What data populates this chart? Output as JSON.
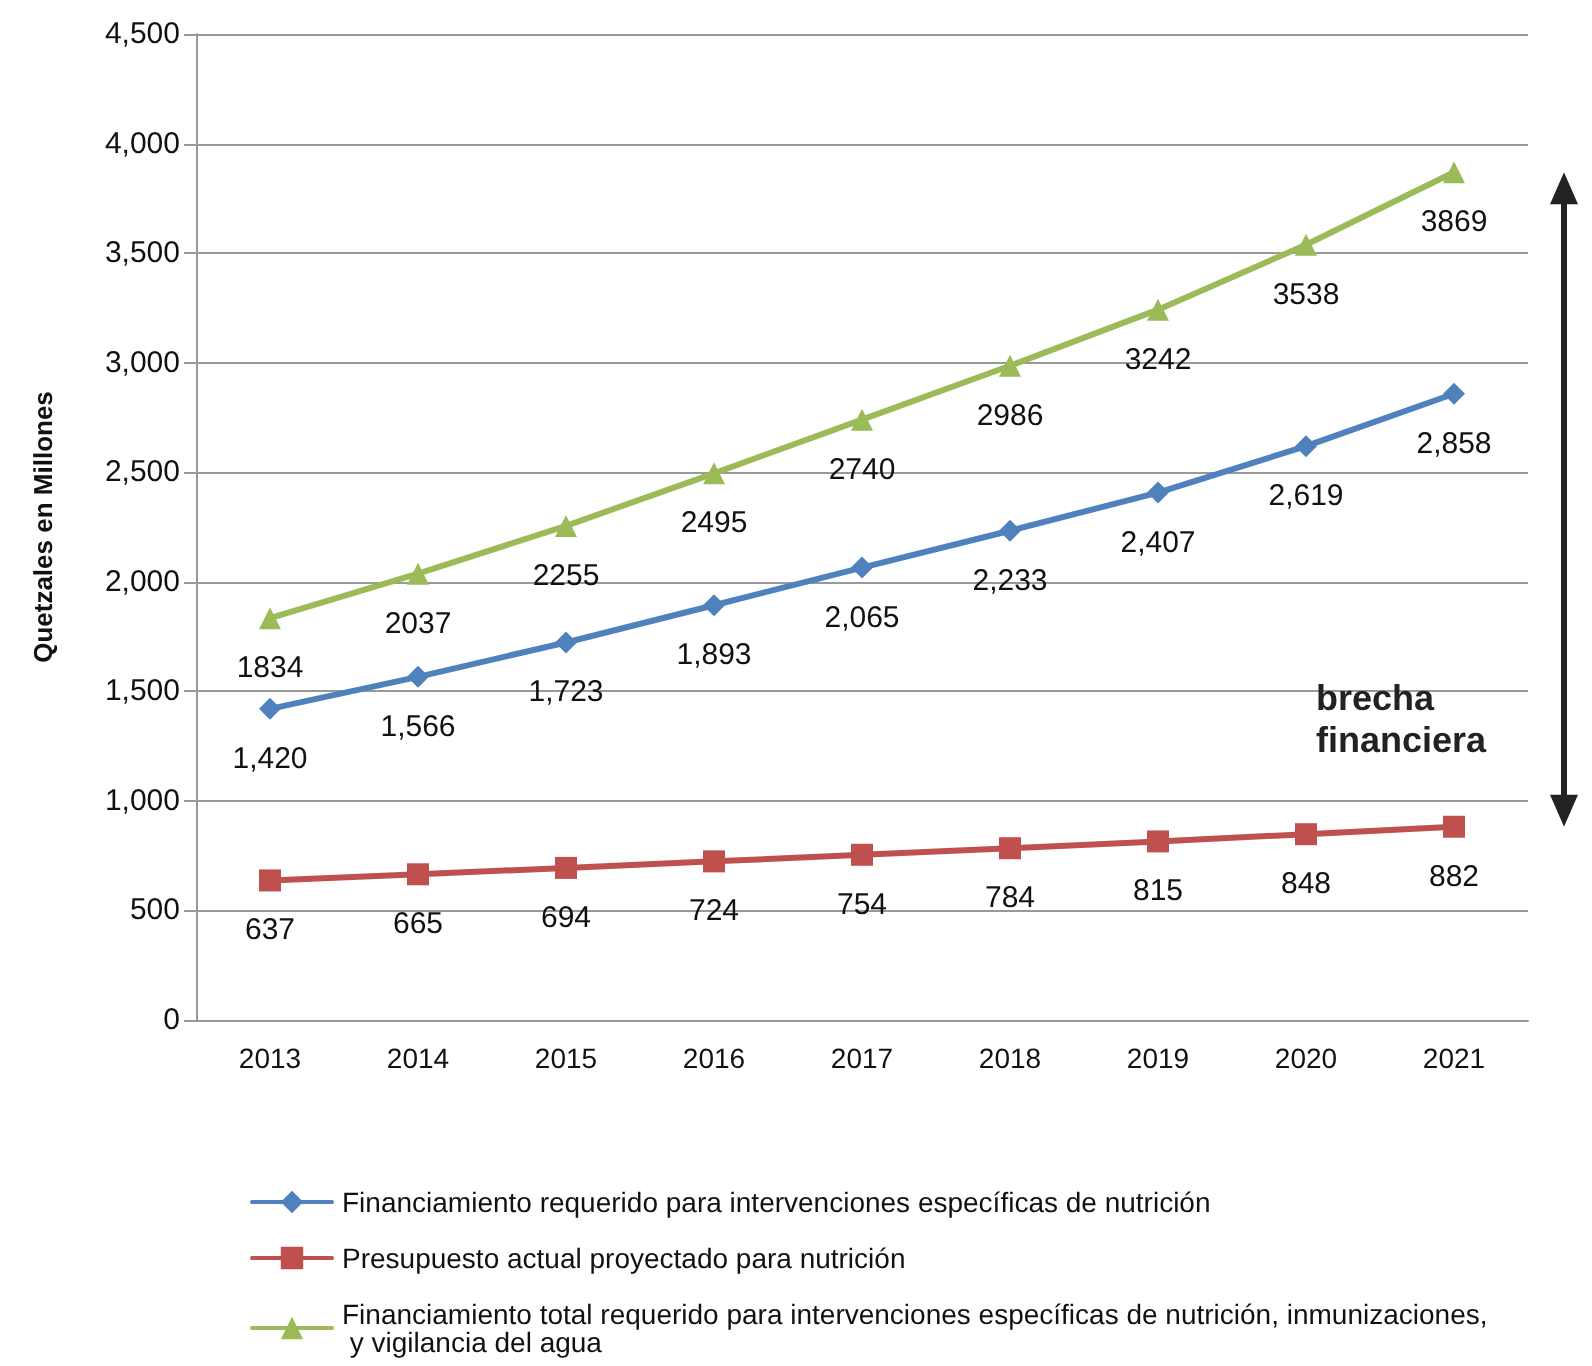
{
  "chart_data": {
    "type": "line",
    "ylabel": "Quetzales en Millones",
    "categories": [
      "2013",
      "2014",
      "2015",
      "2016",
      "2017",
      "2018",
      "2019",
      "2020",
      "2021"
    ],
    "ylim": [
      0,
      4500
    ],
    "yticks": [
      0,
      {
        "value": 500,
        "label": "500"
      },
      {
        "value": 1000,
        "label": "1,000"
      },
      {
        "value": 1500,
        "label": "1,500"
      },
      {
        "value": 2000,
        "label": "2,000"
      },
      {
        "value": 2500,
        "label": "2,500"
      },
      {
        "value": 3000,
        "label": "3,000"
      },
      {
        "value": 3500,
        "label": "3,500"
      },
      {
        "value": 4000,
        "label": "4,000"
      },
      {
        "value": 4500,
        "label": "4,500"
      }
    ],
    "grid": "y",
    "legend": "bottom",
    "line_style": "solid",
    "series": [
      {
        "name": "Financiamiento requerido para intervenciones específicas de nutrición",
        "color": "#4f81bd",
        "marker": "diamond",
        "values": [
          1420,
          1566,
          1723,
          1893,
          2065,
          2233,
          2407,
          2619,
          2858
        ],
        "value_labels": [
          "1,420",
          "1,566",
          "1,723",
          "1,893",
          "2,065",
          "2,233",
          "2,407",
          "2,619",
          "2,858"
        ]
      },
      {
        "name": "Presupuesto actual proyectado para nutrición",
        "color": "#c0504d",
        "marker": "square",
        "values": [
          637,
          665,
          694,
          724,
          754,
          784,
          815,
          848,
          882
        ],
        "value_labels": [
          "637",
          "665",
          "694",
          "724",
          "754",
          "784",
          "815",
          "848",
          "882"
        ]
      },
      {
        "name": "Financiamiento total requerido para intervenciones específicas de nutrición, inmunizaciones, y vigilancia del agua",
        "color": "#9bbb59",
        "marker": "triangle",
        "values": [
          1834,
          2037,
          2255,
          2495,
          2740,
          2986,
          3242,
          3538,
          3869
        ],
        "value_labels": [
          "1834",
          "2037",
          "2255",
          "2495",
          "2740",
          "2986",
          "3242",
          "3538",
          "3869"
        ]
      }
    ],
    "annotations": [
      "brecha financiera"
    ]
  }
}
